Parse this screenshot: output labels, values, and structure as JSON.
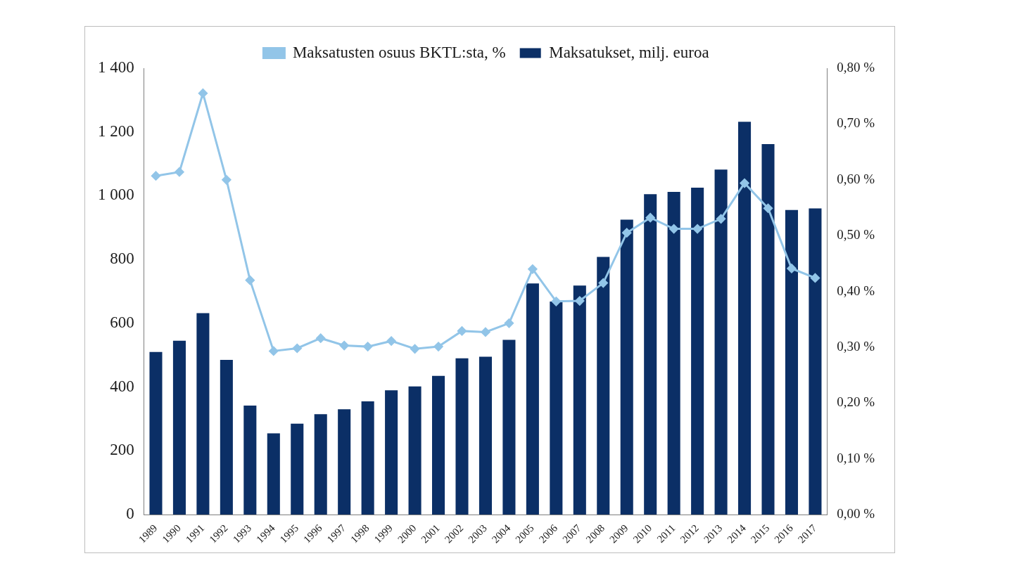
{
  "chart_data": {
    "type": "bar",
    "categories": [
      "1989",
      "1990",
      "1991",
      "1992",
      "1993",
      "1994",
      "1995",
      "1996",
      "1997",
      "1998",
      "1999",
      "2000",
      "2001",
      "2002",
      "2003",
      "2004",
      "2005",
      "2006",
      "2007",
      "2008",
      "2009",
      "2010",
      "2011",
      "2012",
      "2013",
      "2014",
      "2015",
      "2016",
      "2017"
    ],
    "series": [
      {
        "name": "Maksatukset, milj. euroa",
        "type": "bar",
        "color": "#0b2f66",
        "values": [
          510,
          545,
          632,
          485,
          342,
          255,
          285,
          315,
          330,
          355,
          390,
          402,
          435,
          490,
          495,
          548,
          725,
          668,
          718,
          808,
          925,
          1005,
          1012,
          1025,
          1082,
          1232,
          1162,
          955,
          960
        ]
      },
      {
        "name": "Maksatusten osuus BKTL:sta, %",
        "type": "line",
        "axis": "y2",
        "color": "#92c5e8",
        "marker": "diamond",
        "line_style": "solid",
        "values": [
          0.607,
          0.614,
          0.755,
          0.6,
          0.42,
          0.293,
          0.298,
          0.316,
          0.303,
          0.301,
          0.311,
          0.297,
          0.301,
          0.329,
          0.327,
          0.343,
          0.44,
          0.382,
          0.383,
          0.415,
          0.505,
          0.532,
          0.512,
          0.512,
          0.53,
          0.594,
          0.549,
          0.441,
          0.424
        ]
      }
    ],
    "ylim": [
      0,
      1400
    ],
    "yticks": [
      0,
      200,
      400,
      600,
      800,
      {
        "value": 1000,
        "label": "1 000"
      },
      {
        "value": 1200,
        "label": "1 200"
      },
      {
        "value": 1400,
        "label": "1 400"
      }
    ],
    "y2lim": [
      0,
      0.8
    ],
    "y2ticks": [
      {
        "value": 0,
        "label": "0,00 %"
      },
      {
        "value": 0.1,
        "label": "0,10 %"
      },
      {
        "value": 0.2,
        "label": "0,20 %"
      },
      {
        "value": 0.3,
        "label": "0,30 %"
      },
      {
        "value": 0.4,
        "label": "0,40 %"
      },
      {
        "value": 0.5,
        "label": "0,50 %"
      },
      {
        "value": 0.6,
        "label": "0,60 %"
      },
      {
        "value": 0.7,
        "label": "0,70 %"
      },
      {
        "value": 0.8,
        "label": "0,80 %"
      }
    ],
    "grid": false,
    "legend": "top"
  }
}
